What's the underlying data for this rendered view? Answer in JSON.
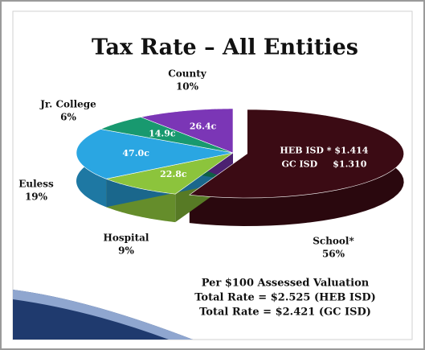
{
  "chart_data": {
    "type": "pie",
    "title": "Tax Rate – All Entities",
    "categories": [
      "School*",
      "Hospital",
      "Euless",
      "Jr. College",
      "County"
    ],
    "values": [
      56,
      9,
      19,
      6,
      10
    ],
    "value_labels": [
      "56%",
      "9%",
      "19%",
      "6%",
      "10%"
    ],
    "colors": [
      "#3b0b14",
      "#8cc43c",
      "#2aa6e2",
      "#18996f",
      "#7b36b6"
    ],
    "slice_labels": [
      [
        "HEB ISD * $1.414",
        "GC ISD     $1.310"
      ],
      [
        "22.8c"
      ],
      [
        "47.0c"
      ],
      [
        "14.9c"
      ],
      [
        "26.4c"
      ]
    ],
    "exploded": [
      true,
      false,
      false,
      false,
      false
    ],
    "annotations": [
      "Per $100 Assessed Valuation",
      "Total Rate = $2.525 (HEB ISD)",
      "Total Rate = $2.421 (GC ISD)"
    ]
  }
}
